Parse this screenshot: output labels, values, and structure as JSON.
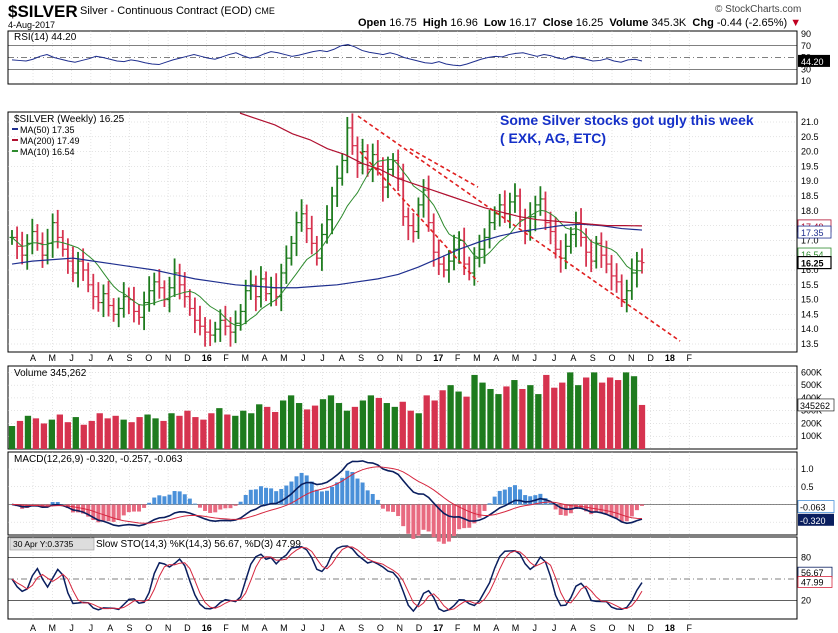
{
  "header": {
    "symbol": "$SILVER",
    "name": "Silver - Continuous Contract (EOD)",
    "exchange": "CME",
    "date": "4-Aug-2017",
    "open_label": "Open",
    "open": "16.75",
    "high_label": "High",
    "high": "16.96",
    "low_label": "Low",
    "low": "16.17",
    "close_label": "Close",
    "close": "16.25",
    "volume_label": "Volume",
    "volume": "345.3K",
    "chg_label": "Chg",
    "chg": "-0.44 (-2.65%)",
    "chg_arrow": "▼",
    "logo": "© StockCharts.com"
  },
  "colors": {
    "up": "#1e7b1e",
    "down": "#d6334f",
    "ma50": "#1f2f8f",
    "ma200": "#b01030",
    "ma10": "#2e8b2e",
    "annotation": "#1530c8",
    "trend": "#e02020",
    "macd_hist": "#4a90d9",
    "macd_hist_neg": "#e86a80",
    "grid": "#c8c8c8"
  },
  "annotation": {
    "line1": "Some Silver stocks got ugly this week",
    "line2": "( EXK, AG, ETC)"
  },
  "x_axis": {
    "labels": [
      "A",
      "M",
      "J",
      "J",
      "A",
      "S",
      "O",
      "N",
      "D",
      "16",
      "F",
      "M",
      "A",
      "M",
      "J",
      "J",
      "A",
      "S",
      "O",
      "N",
      "D",
      "17",
      "F",
      "M",
      "A",
      "M",
      "J",
      "J",
      "A",
      "S",
      "O",
      "N",
      "D",
      "18",
      "F"
    ]
  },
  "rsi": {
    "title": "RSI(14) 44.20",
    "ticks": [
      "90",
      "70",
      "50",
      "30",
      "10"
    ],
    "value_label": "44.20",
    "values": [
      46,
      45,
      44,
      47,
      52,
      55,
      50,
      47,
      44,
      42,
      45,
      48,
      52,
      50,
      47,
      44,
      43,
      46,
      44,
      41,
      39,
      38,
      42,
      46,
      49,
      52,
      55,
      52,
      49,
      47,
      51,
      55,
      58,
      53,
      49,
      51,
      56,
      60,
      58,
      55,
      52,
      54,
      57,
      60,
      62,
      60,
      64,
      70,
      72,
      68,
      62,
      59,
      57,
      55,
      58,
      55,
      50,
      47,
      44,
      41,
      40,
      43,
      39,
      37,
      36,
      39,
      43,
      47,
      50,
      52,
      51,
      55,
      57,
      58,
      55,
      52,
      55,
      53,
      49,
      47,
      52,
      50,
      47,
      44,
      45,
      48,
      44,
      42,
      46,
      47,
      44
    ]
  },
  "price": {
    "title": "$SILVER (Weekly) 16.25",
    "legend": [
      {
        "name": "MA(50) 17.35",
        "color": "#1f2f8f"
      },
      {
        "name": "MA(200) 17.49",
        "color": "#b01030"
      },
      {
        "name": "MA(10) 16.54",
        "color": "#2e8b2e"
      }
    ],
    "ticks": [
      "21.0",
      "20.5",
      "20.0",
      "19.5",
      "19.0",
      "18.5",
      "18.0",
      "17.5",
      "17.0",
      "16.5",
      "16.0",
      "15.5",
      "15.0",
      "14.5",
      "14.0",
      "13.5"
    ],
    "last_labels": [
      {
        "text": "17.49",
        "value": 17.49,
        "color": "#b01030"
      },
      {
        "text": "17.35",
        "value": 17.35,
        "color": "#1f2f8f"
      },
      {
        "text": "16.54",
        "value": 16.54,
        "color": "#2e8b2e"
      },
      {
        "text": "16.25",
        "value": 16.25,
        "color": "#000000"
      }
    ]
  },
  "volume": {
    "title": "Volume 345,262",
    "ticks": [
      "600K",
      "500K",
      "400K",
      "300K",
      "200K",
      "100K"
    ],
    "value_label": "345262"
  },
  "macd": {
    "title": "MACD(12,26,9) -0.320, -0.257, -0.063",
    "ticks": [
      "1.0",
      "0.5",
      "0.0",
      "-0.5"
    ],
    "hist_label": "-0.063",
    "value_label": "-0.320"
  },
  "stoch": {
    "title": "Slow STO(14,3) %K(14,3) 56.67, %D(3) 47.99",
    "tooltip": "30 Apr Y:0.3735",
    "ticks": [
      "80",
      "20"
    ],
    "k_label": "56.67",
    "d_label": "47.99"
  },
  "chart_data": {
    "type": "candlestick",
    "title": "$SILVER (Weekly) 16.25",
    "series": [
      {
        "name": "$SILVER (Weekly)",
        "values": [
          17.1,
          16.8,
          16.5,
          16.9,
          17.3,
          16.9,
          16.5,
          16.9,
          17.6,
          17.1,
          16.7,
          16.3,
          15.9,
          16.3,
          16.0,
          15.5,
          15.1,
          14.9,
          15.2,
          14.8,
          14.5,
          14.7,
          15.1,
          15.0,
          14.6,
          14.4,
          14.9,
          15.3,
          15.6,
          15.4,
          15.0,
          15.4,
          15.9,
          15.5,
          15.1,
          14.7,
          14.3,
          14.1,
          13.9,
          13.8,
          14.0,
          14.3,
          14.1,
          13.9,
          14.2,
          14.6,
          15.3,
          15.5,
          15.1,
          15.7,
          15.2,
          15.4,
          15.1,
          15.9,
          16.4,
          16.9,
          17.6,
          17.9,
          17.4,
          16.9,
          16.4,
          17.2,
          17.7,
          18.5,
          19.1,
          19.7,
          20.8,
          20.2,
          19.6,
          20.0,
          19.4,
          19.9,
          19.5,
          18.8,
          19.4,
          19.7,
          19.1,
          17.8,
          17.5,
          17.3,
          18.2,
          18.7,
          17.6,
          16.6,
          16.2,
          16.0,
          16.3,
          16.7,
          17.0,
          16.2,
          15.9,
          16.4,
          16.7,
          17.1,
          17.6,
          17.9,
          18.2,
          17.9,
          18.3,
          18.5,
          17.7,
          17.3,
          17.8,
          18.2,
          18.4,
          17.6,
          17.3,
          16.7,
          16.4,
          16.8,
          17.2,
          17.6,
          17.1,
          16.6,
          16.3,
          16.9,
          16.5,
          16.2,
          15.8,
          15.6,
          15.0,
          15.3,
          15.9,
          16.3,
          16.25
        ]
      },
      {
        "name": "MA(50)",
        "values": [
          16.2,
          16.3,
          16.35,
          16.4,
          16.3,
          16.2,
          16.1,
          16.0,
          15.85,
          15.7,
          15.6,
          15.5,
          15.45,
          15.4,
          15.4,
          15.45,
          15.5,
          15.6,
          15.7,
          15.85,
          16.1,
          16.4,
          16.7,
          16.95,
          17.15,
          17.3,
          17.4,
          17.5,
          17.55,
          17.5,
          17.4,
          17.35
        ]
      },
      {
        "name": "MA(200)",
        "values": [
          21.3,
          21.1,
          20.9,
          20.6,
          20.4,
          20.1,
          19.9,
          19.6,
          19.4,
          19.1,
          18.9,
          18.7,
          18.5,
          18.3,
          18.1,
          17.95,
          17.8,
          17.7,
          17.65,
          17.6,
          17.55,
          17.5,
          17.5,
          17.49
        ]
      },
      {
        "name": "Volume",
        "values": [
          180,
          220,
          260,
          240,
          200,
          230,
          270,
          210,
          250,
          190,
          220,
          280,
          240,
          260,
          230,
          210,
          250,
          270,
          240,
          220,
          280,
          260,
          300,
          250,
          230,
          280,
          320,
          270,
          260,
          300,
          280,
          350,
          330,
          290,
          380,
          420,
          360,
          310,
          340,
          390,
          420,
          360,
          300,
          330,
          380,
          420,
          400,
          360,
          330,
          370,
          300,
          280,
          420,
          380,
          460,
          500,
          450,
          410,
          580,
          520,
          470,
          430,
          490,
          540,
          470,
          500,
          430,
          580,
          480,
          520,
          600,
          500,
          560,
          600,
          520,
          560,
          540,
          600,
          570,
          345
        ]
      },
      {
        "name": "RSI(14)",
        "values": [
          46,
          45,
          44,
          47,
          52,
          55,
          50,
          47,
          44,
          42,
          45,
          48,
          52,
          50,
          47,
          44,
          43,
          46,
          44,
          41,
          39,
          38,
          42,
          46,
          49,
          52,
          55,
          52,
          49,
          47,
          51,
          55,
          58,
          53,
          49,
          51,
          56,
          60,
          58,
          55,
          52,
          54,
          57,
          60,
          62,
          60,
          64,
          70,
          72,
          68,
          62,
          59,
          57,
          55,
          58,
          55,
          50,
          47,
          44,
          41,
          40,
          43,
          39,
          37,
          36,
          39,
          43,
          47,
          50,
          52,
          51,
          55,
          57,
          58,
          55,
          52,
          55,
          53,
          49,
          47,
          52,
          50,
          47,
          44,
          45,
          48,
          44,
          42,
          46,
          47,
          44
        ]
      }
    ],
    "ylim": [
      13.5,
      21.0
    ],
    "ylabel": "",
    "xlabel": "",
    "grid": true
  }
}
